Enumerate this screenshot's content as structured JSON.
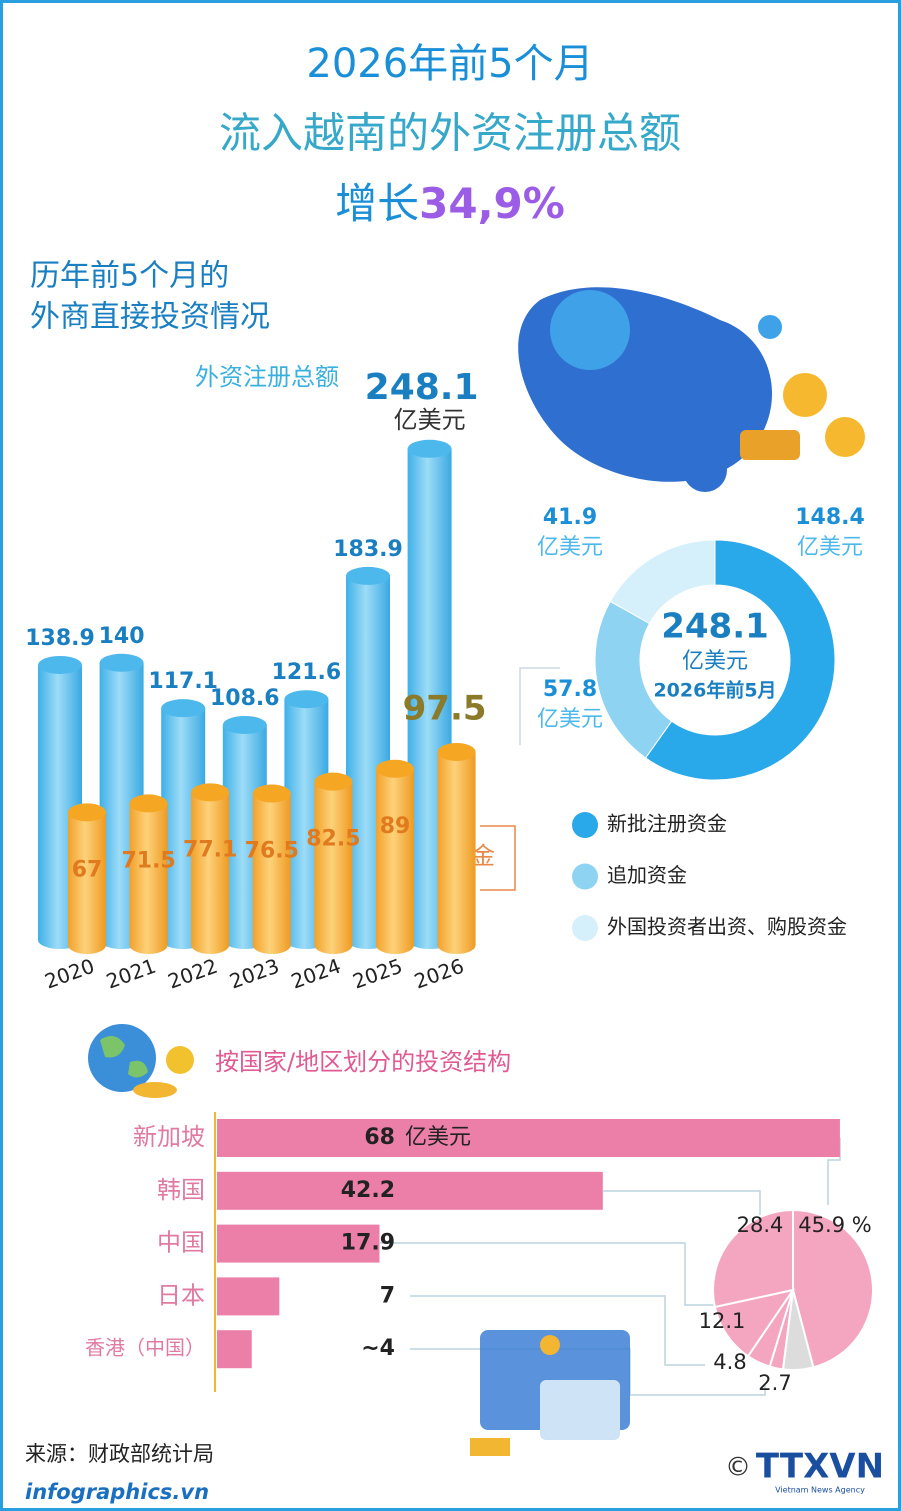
{
  "header": {
    "line1": "2026年前5个月",
    "line2": "流入越南的外资注册总额",
    "line3_prefix": "增长",
    "line3_highlight": "34,9%"
  },
  "section1": {
    "title_line1": "历年前5个月的",
    "title_line2": "外商直接投资情况"
  },
  "chart_data": [
    {
      "type": "cylinder_bar",
      "categories": [
        "2020",
        "2021",
        "2022",
        "2023",
        "2024",
        "2025",
        "2026"
      ],
      "value_unit": "亿美元",
      "series": [
        {
          "name": "外资注册总额",
          "color": "#4db8ec",
          "values": [
            138.9,
            140,
            117.1,
            108.6,
            121.6,
            183.9,
            248.1
          ]
        },
        {
          "name": "实际到位资金",
          "color": "#f5a623",
          "values": [
            67,
            71.5,
            77.1,
            76.5,
            82.5,
            89,
            97.5
          ]
        }
      ]
    },
    {
      "type": "donut",
      "total": 248.1,
      "value_unit": "亿美元",
      "center_label": "2026年前5月",
      "categories": [
        "新批注册资金",
        "追加资金",
        "外国投资者出资、购股资金"
      ],
      "values": [
        148.4,
        57.8,
        41.9
      ],
      "colors": [
        "#29a8ea",
        "#8fd3f3",
        "#d6f0fb"
      ]
    },
    {
      "type": "hbar",
      "title": "按国家/地区划分的投资结构",
      "categories": [
        "新加坡",
        "韩国",
        "中国",
        "日本",
        "香港（中国）"
      ],
      "values": [
        68,
        42.2,
        17.9,
        7,
        4
      ],
      "value_labels": [
        "68",
        "42.2",
        "17.9",
        "7",
        "~4"
      ],
      "value_unit": "亿美元",
      "color": "#ec7fa8"
    },
    {
      "type": "pie",
      "values": [
        45.9,
        28.4,
        12.1,
        4.8,
        2.7,
        6.1
      ],
      "value_labels": [
        "45.9 %",
        "28.4",
        "12.1",
        "4.8",
        "2.7",
        null
      ],
      "colors": [
        "#f4a6c0",
        "#f4a6c0",
        "#f4a6c0",
        "#f4a6c0",
        "#f4a6c0",
        "#dcdcdc"
      ]
    }
  ],
  "source": "来源：财政部统计局",
  "footer": {
    "site": "infographics.vn",
    "copyright": "©",
    "agency": "TTXVN",
    "agency_sub": "Vietnam News Agency"
  }
}
